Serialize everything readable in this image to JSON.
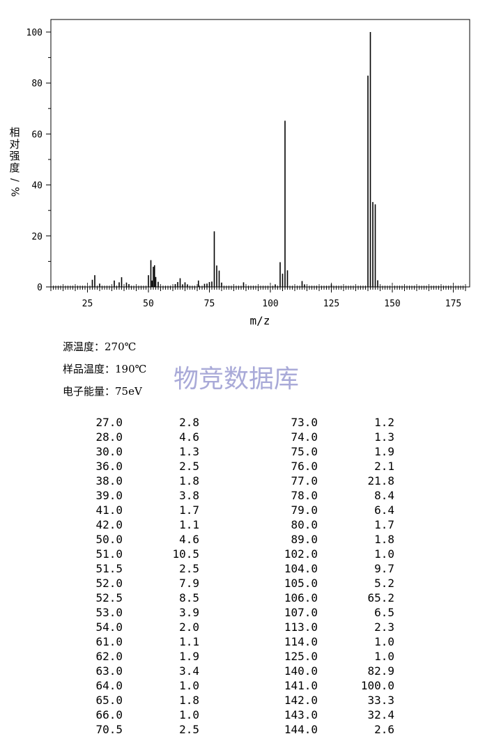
{
  "chart_data": {
    "type": "bar",
    "xlabel": "m/z",
    "ylabel_chars": [
      "相",
      "对",
      "强",
      "度",
      "/",
      "%"
    ],
    "xlim": [
      7,
      183
    ],
    "ylim": [
      0,
      105
    ],
    "xticks": [
      25,
      50,
      75,
      100,
      125,
      150,
      175
    ],
    "yticks": [
      0,
      20,
      40,
      60,
      80,
      100
    ],
    "series": [
      {
        "x": [
          27.0,
          28.0,
          30.0,
          36.0,
          38.0,
          39.0,
          41.0,
          42.0,
          50.0,
          51.0,
          51.5,
          52.0,
          52.5,
          53.0,
          54.0,
          61.0,
          62.0,
          63.0,
          64.0,
          65.0,
          66.0,
          70.5,
          73.0,
          74.0,
          75.0,
          76.0,
          77.0,
          78.0,
          79.0,
          80.0,
          89.0,
          102.0,
          104.0,
          105.0,
          106.0,
          107.0,
          113.0,
          114.0,
          125.0,
          140.0,
          141.0,
          142.0,
          143.0,
          144.0
        ],
        "y": [
          2.8,
          4.6,
          1.3,
          2.5,
          1.8,
          3.8,
          1.7,
          1.1,
          4.6,
          10.5,
          2.5,
          7.9,
          8.5,
          3.9,
          2.0,
          1.1,
          1.9,
          3.4,
          1.0,
          1.8,
          1.0,
          2.5,
          1.2,
          1.3,
          1.9,
          2.1,
          21.8,
          8.4,
          6.4,
          1.7,
          1.8,
          1.0,
          9.7,
          5.2,
          65.2,
          6.5,
          2.3,
          1.0,
          1.0,
          82.9,
          100.0,
          33.3,
          32.4,
          2.6
        ]
      }
    ]
  },
  "conditions": {
    "source_temp": "源温度：270℃",
    "sample_temp": "样品温度：190℃",
    "electron_energy": "电子能量：75eV"
  },
  "watermark": "物竞数据库",
  "peak_table": {
    "left": [
      [
        "27.0",
        "2.8"
      ],
      [
        "28.0",
        "4.6"
      ],
      [
        "30.0",
        "1.3"
      ],
      [
        "36.0",
        "2.5"
      ],
      [
        "38.0",
        "1.8"
      ],
      [
        "39.0",
        "3.8"
      ],
      [
        "41.0",
        "1.7"
      ],
      [
        "42.0",
        "1.1"
      ],
      [
        "50.0",
        "4.6"
      ],
      [
        "51.0",
        "10.5"
      ],
      [
        "51.5",
        "2.5"
      ],
      [
        "52.0",
        "7.9"
      ],
      [
        "52.5",
        "8.5"
      ],
      [
        "53.0",
        "3.9"
      ],
      [
        "54.0",
        "2.0"
      ],
      [
        "61.0",
        "1.1"
      ],
      [
        "62.0",
        "1.9"
      ],
      [
        "63.0",
        "3.4"
      ],
      [
        "64.0",
        "1.0"
      ],
      [
        "65.0",
        "1.8"
      ],
      [
        "66.0",
        "1.0"
      ],
      [
        "70.5",
        "2.5"
      ]
    ],
    "right": [
      [
        "73.0",
        "1.2"
      ],
      [
        "74.0",
        "1.3"
      ],
      [
        "75.0",
        "1.9"
      ],
      [
        "76.0",
        "2.1"
      ],
      [
        "77.0",
        "21.8"
      ],
      [
        "78.0",
        "8.4"
      ],
      [
        "79.0",
        "6.4"
      ],
      [
        "80.0",
        "1.7"
      ],
      [
        "89.0",
        "1.8"
      ],
      [
        "102.0",
        "1.0"
      ],
      [
        "104.0",
        "9.7"
      ],
      [
        "105.0",
        "5.2"
      ],
      [
        "106.0",
        "65.2"
      ],
      [
        "107.0",
        "6.5"
      ],
      [
        "113.0",
        "2.3"
      ],
      [
        "114.0",
        "1.0"
      ],
      [
        "125.0",
        "1.0"
      ],
      [
        "140.0",
        "82.9"
      ],
      [
        "141.0",
        "100.0"
      ],
      [
        "142.0",
        "33.3"
      ],
      [
        "143.0",
        "32.4"
      ],
      [
        "144.0",
        "2.6"
      ]
    ]
  }
}
